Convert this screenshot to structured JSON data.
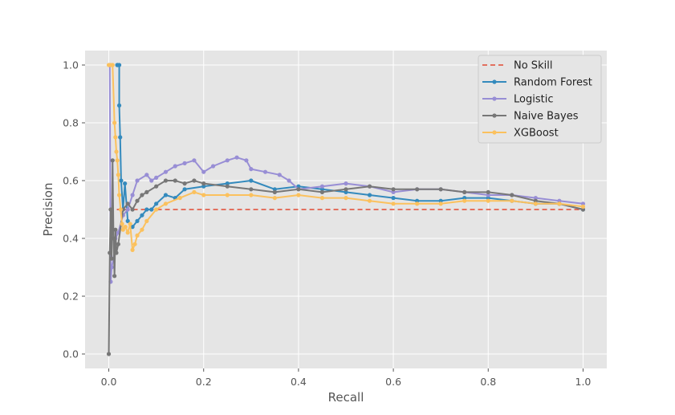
{
  "chart_data": {
    "type": "line",
    "title": "",
    "xlabel": "Recall",
    "ylabel": "Precision",
    "xlim": [
      -0.05,
      1.05
    ],
    "ylim": [
      -0.05,
      1.05
    ],
    "xticks": [
      0.0,
      0.2,
      0.4,
      0.6,
      0.8,
      1.0
    ],
    "yticks": [
      0.0,
      0.2,
      0.4,
      0.6,
      0.8,
      1.0
    ],
    "xtick_labels": [
      "0.0",
      "0.2",
      "0.4",
      "0.6",
      "0.8",
      "1.0"
    ],
    "ytick_labels": [
      "0.0",
      "0.2",
      "0.4",
      "0.6",
      "0.8",
      "1.0"
    ],
    "grid": true,
    "legend_position": "top-right",
    "series": [
      {
        "name": "No Skill",
        "color": "#E24A33",
        "style": "dashed",
        "markers": false,
        "x": [
          0,
          1
        ],
        "y": [
          0.5,
          0.5
        ]
      },
      {
        "name": "Random Forest",
        "color": "#348ABD",
        "style": "solid",
        "markers": true,
        "x": [
          0.018,
          0.018,
          0.022,
          0.022,
          0.024,
          0.026,
          0.03,
          0.034,
          0.04,
          0.05,
          0.06,
          0.07,
          0.08,
          0.09,
          0.1,
          0.12,
          0.14,
          0.16,
          0.2,
          0.25,
          0.3,
          0.35,
          0.4,
          0.45,
          0.5,
          0.55,
          0.6,
          0.65,
          0.7,
          0.75,
          0.8,
          0.85,
          0.9,
          0.95,
          1.0
        ],
        "y": [
          1.0,
          1.0,
          1.0,
          0.86,
          0.75,
          0.6,
          0.5,
          0.59,
          0.46,
          0.44,
          0.46,
          0.48,
          0.5,
          0.5,
          0.52,
          0.55,
          0.54,
          0.57,
          0.58,
          0.59,
          0.6,
          0.57,
          0.58,
          0.57,
          0.56,
          0.55,
          0.54,
          0.53,
          0.53,
          0.54,
          0.54,
          0.53,
          0.52,
          0.52,
          0.5
        ]
      },
      {
        "name": "Logistic",
        "color": "#988ED5",
        "style": "solid",
        "markers": true,
        "x": [
          0.002,
          0.004,
          0.006,
          0.01,
          0.014,
          0.02,
          0.03,
          0.04,
          0.05,
          0.06,
          0.08,
          0.09,
          0.1,
          0.12,
          0.14,
          0.16,
          0.18,
          0.2,
          0.22,
          0.25,
          0.27,
          0.29,
          0.3,
          0.33,
          0.36,
          0.38,
          0.4,
          0.45,
          0.5,
          0.55,
          0.6,
          0.65,
          0.7,
          0.75,
          0.8,
          0.85,
          0.9,
          0.95,
          1.0
        ],
        "y": [
          1.0,
          0.25,
          0.3,
          0.33,
          0.4,
          0.42,
          0.48,
          0.5,
          0.55,
          0.6,
          0.62,
          0.6,
          0.61,
          0.63,
          0.65,
          0.66,
          0.67,
          0.63,
          0.65,
          0.67,
          0.68,
          0.67,
          0.64,
          0.63,
          0.62,
          0.6,
          0.57,
          0.58,
          0.59,
          0.58,
          0.56,
          0.57,
          0.57,
          0.56,
          0.55,
          0.55,
          0.54,
          0.53,
          0.52
        ]
      },
      {
        "name": "Naive Bayes",
        "color": "#777777",
        "style": "solid",
        "markers": true,
        "x": [
          0.0,
          0.002,
          0.004,
          0.006,
          0.008,
          0.01,
          0.012,
          0.014,
          0.016,
          0.02,
          0.03,
          0.04,
          0.05,
          0.06,
          0.07,
          0.08,
          0.1,
          0.12,
          0.14,
          0.16,
          0.18,
          0.2,
          0.25,
          0.3,
          0.35,
          0.4,
          0.45,
          0.5,
          0.55,
          0.6,
          0.65,
          0.7,
          0.75,
          0.8,
          0.85,
          0.9,
          0.95,
          1.0
        ],
        "y": [
          0.0,
          0.35,
          0.5,
          0.33,
          0.67,
          0.4,
          0.27,
          0.43,
          0.35,
          0.38,
          0.5,
          0.52,
          0.5,
          0.53,
          0.55,
          0.56,
          0.58,
          0.6,
          0.6,
          0.59,
          0.6,
          0.59,
          0.58,
          0.57,
          0.56,
          0.57,
          0.56,
          0.57,
          0.58,
          0.57,
          0.57,
          0.57,
          0.56,
          0.56,
          0.55,
          0.53,
          0.52,
          0.5
        ]
      },
      {
        "name": "XGBoost",
        "color": "#FBC15E",
        "style": "solid",
        "markers": true,
        "x": [
          0.0,
          0.004,
          0.008,
          0.012,
          0.014,
          0.016,
          0.018,
          0.02,
          0.022,
          0.025,
          0.028,
          0.03,
          0.035,
          0.04,
          0.045,
          0.05,
          0.055,
          0.06,
          0.07,
          0.08,
          0.1,
          0.12,
          0.15,
          0.18,
          0.2,
          0.25,
          0.3,
          0.35,
          0.4,
          0.45,
          0.5,
          0.55,
          0.6,
          0.65,
          0.7,
          0.75,
          0.8,
          0.85,
          0.9,
          0.95,
          1.0
        ],
        "y": [
          1.0,
          1.0,
          1.0,
          0.8,
          0.75,
          0.7,
          0.67,
          0.62,
          0.55,
          0.5,
          0.45,
          0.43,
          0.44,
          0.42,
          0.45,
          0.36,
          0.38,
          0.41,
          0.43,
          0.46,
          0.5,
          0.52,
          0.54,
          0.56,
          0.55,
          0.55,
          0.55,
          0.54,
          0.55,
          0.54,
          0.54,
          0.53,
          0.52,
          0.52,
          0.52,
          0.53,
          0.53,
          0.53,
          0.52,
          0.52,
          0.51
        ]
      }
    ]
  }
}
